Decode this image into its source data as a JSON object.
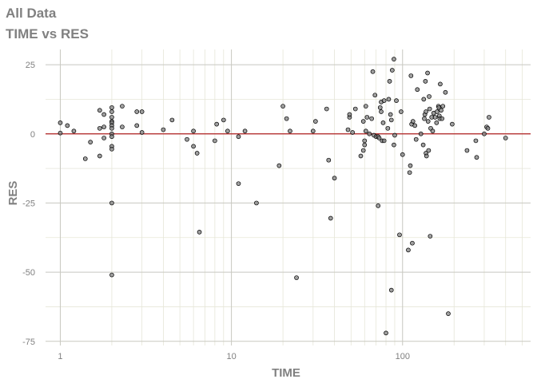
{
  "chart_data": {
    "type": "scatter",
    "title": "All Data",
    "subtitle": "TIME vs RES",
    "xlabel": "TIME",
    "ylabel": "RES",
    "x_scale": "log10",
    "xlim": [
      0.82,
      560
    ],
    "ylim": [
      -76.5,
      30.5
    ],
    "x_ticks": [
      1,
      10,
      100
    ],
    "x_tick_labels": [
      "1",
      "10",
      "100"
    ],
    "y_ticks": [
      25,
      0,
      -25,
      -50,
      -75
    ],
    "y_tick_labels": [
      "25",
      "0",
      "-25",
      "-50",
      "-75"
    ],
    "reference_line": {
      "y": 0,
      "color": "#b22222"
    },
    "colors": {
      "points": "#808080",
      "point_stroke": "#000000",
      "grid": "#e6e6d8",
      "major_grid": "#c8c8c0",
      "text": "#808080"
    },
    "grid": true,
    "points": [
      [
        1,
        4
      ],
      [
        1,
        0.3
      ],
      [
        1.1,
        3
      ],
      [
        1.2,
        1
      ],
      [
        1.4,
        -9
      ],
      [
        1.5,
        -3
      ],
      [
        1.7,
        8.5
      ],
      [
        1.7,
        -8
      ],
      [
        1.7,
        2
      ],
      [
        1.8,
        7
      ],
      [
        1.8,
        -1.5
      ],
      [
        1.8,
        2.5
      ],
      [
        2,
        9.5
      ],
      [
        2,
        8
      ],
      [
        2,
        6
      ],
      [
        2,
        4.5
      ],
      [
        2,
        4
      ],
      [
        2,
        3
      ],
      [
        2,
        2
      ],
      [
        2,
        0
      ],
      [
        2,
        -1
      ],
      [
        2,
        -4.5
      ],
      [
        2,
        -5.5
      ],
      [
        2,
        -25
      ],
      [
        2,
        -51
      ],
      [
        2.3,
        10
      ],
      [
        2.3,
        2.5
      ],
      [
        2.8,
        8
      ],
      [
        2.8,
        3
      ],
      [
        3,
        8
      ],
      [
        3,
        0.5
      ],
      [
        4,
        1.5
      ],
      [
        4.5,
        5
      ],
      [
        5.5,
        -2
      ],
      [
        6,
        1
      ],
      [
        6,
        -4.5
      ],
      [
        6.3,
        -7
      ],
      [
        6.5,
        -35.5
      ],
      [
        8,
        -2.5
      ],
      [
        8.2,
        3.5
      ],
      [
        9,
        5
      ],
      [
        9.5,
        1
      ],
      [
        11,
        -1
      ],
      [
        11,
        -18
      ],
      [
        12,
        1
      ],
      [
        14,
        -25
      ],
      [
        19,
        -11.5
      ],
      [
        20,
        10
      ],
      [
        21,
        5.5
      ],
      [
        22,
        1
      ],
      [
        24,
        -52
      ],
      [
        30,
        1
      ],
      [
        31,
        4.5
      ],
      [
        36,
        9
      ],
      [
        37,
        -9.5
      ],
      [
        38,
        -30.5
      ],
      [
        40,
        -16
      ],
      [
        48,
        1.5
      ],
      [
        49,
        6
      ],
      [
        49,
        7
      ],
      [
        51,
        0.5
      ],
      [
        53,
        9
      ],
      [
        57,
        -8
      ],
      [
        59,
        4.5
      ],
      [
        59,
        -6
      ],
      [
        60,
        -4
      ],
      [
        60,
        -2.5
      ],
      [
        61,
        10
      ],
      [
        61,
        1
      ],
      [
        62,
        6
      ],
      [
        64,
        0
      ],
      [
        66,
        5.5
      ],
      [
        67,
        22.5
      ],
      [
        68,
        -0.5
      ],
      [
        69,
        14
      ],
      [
        70,
        -1
      ],
      [
        72,
        -26
      ],
      [
        72,
        -1
      ],
      [
        73,
        -1.5
      ],
      [
        74,
        9.5
      ],
      [
        75,
        8
      ],
      [
        75,
        11.5
      ],
      [
        76,
        -2.5
      ],
      [
        77,
        4
      ],
      [
        78,
        12
      ],
      [
        78,
        -2.5
      ],
      [
        80,
        -72
      ],
      [
        82,
        2
      ],
      [
        83,
        12.5
      ],
      [
        84,
        19
      ],
      [
        85,
        7
      ],
      [
        86,
        -56.5
      ],
      [
        86,
        5
      ],
      [
        87,
        23
      ],
      [
        89,
        -4
      ],
      [
        89,
        27
      ],
      [
        90,
        -0.5
      ],
      [
        92,
        12
      ],
      [
        96,
        -36.5
      ],
      [
        98,
        8
      ],
      [
        100,
        -7.5
      ],
      [
        108,
        -42
      ],
      [
        110,
        -14
      ],
      [
        111,
        -11.5
      ],
      [
        112,
        21
      ],
      [
        113,
        3.5
      ],
      [
        114,
        -39.5
      ],
      [
        115,
        4.5
      ],
      [
        118,
        3
      ],
      [
        120,
        -2
      ],
      [
        122,
        16
      ],
      [
        128,
        0
      ],
      [
        132,
        -4
      ],
      [
        133,
        12.5
      ],
      [
        134,
        5.5
      ],
      [
        135,
        7
      ],
      [
        136,
        19
      ],
      [
        137,
        -7
      ],
      [
        137,
        8
      ],
      [
        138,
        -8
      ],
      [
        140,
        22
      ],
      [
        141,
        4.5
      ],
      [
        142,
        -6
      ],
      [
        143,
        13.5
      ],
      [
        144,
        9
      ],
      [
        145,
        -37
      ],
      [
        146,
        2
      ],
      [
        148,
        6
      ],
      [
        150,
        1
      ],
      [
        152,
        7.5
      ],
      [
        155,
        6
      ],
      [
        158,
        4
      ],
      [
        159,
        8
      ],
      [
        162,
        10
      ],
      [
        163,
        9.5
      ],
      [
        164,
        6.5
      ],
      [
        165,
        5.5
      ],
      [
        166,
        18
      ],
      [
        168,
        8.5
      ],
      [
        170,
        5.5
      ],
      [
        172,
        10
      ],
      [
        178,
        15
      ],
      [
        185,
        -65
      ],
      [
        195,
        3.5
      ],
      [
        238,
        -6
      ],
      [
        268,
        -2.5
      ],
      [
        271,
        -8.5
      ],
      [
        300,
        0
      ],
      [
        310,
        2.5
      ],
      [
        315,
        2
      ],
      [
        320,
        6
      ],
      [
        400,
        -1.5
      ]
    ]
  }
}
